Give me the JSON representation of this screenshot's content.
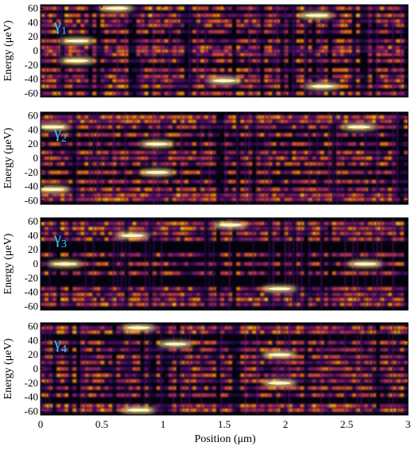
{
  "chart_data": {
    "type": "heatmap",
    "colormap": "inferno",
    "xlabel": "Position (μm)",
    "x_ticks": [
      "0",
      "0.5",
      "1",
      "1.5",
      "2",
      "2.5",
      "3"
    ],
    "xlim": [
      0,
      3
    ],
    "ylim": [
      -65,
      65
    ],
    "y_ticks": [
      "60",
      "40",
      "20",
      "0",
      "-20",
      "-40",
      "-60"
    ],
    "panels": [
      {
        "ylabel": "Energy (μeV)",
        "label": "γ",
        "label_sub": "1",
        "bright_energy_lines": [
          -60,
          -50,
          -42,
          -36,
          -27,
          -14,
          -5,
          0,
          5,
          14,
          27,
          36,
          42,
          50,
          60
        ],
        "hot_spots": [
          {
            "x": 0.3,
            "y": 14
          },
          {
            "x": 0.3,
            "y": -14
          },
          {
            "x": 0.62,
            "y": 60
          },
          {
            "x": 1.5,
            "y": -42
          },
          {
            "x": 2.25,
            "y": 50
          },
          {
            "x": 2.3,
            "y": -50
          }
        ]
      },
      {
        "ylabel": "Energy (μeV)",
        "label": "γ",
        "label_sub": "2",
        "bright_energy_lines": [
          -58,
          -52,
          -44,
          -33,
          -20,
          -8,
          0,
          8,
          20,
          33,
          44,
          52,
          58
        ],
        "hot_spots": [
          {
            "x": 0.1,
            "y": 44
          },
          {
            "x": 0.1,
            "y": -44
          },
          {
            "x": 0.95,
            "y": 20
          },
          {
            "x": 0.95,
            "y": -20
          },
          {
            "x": 2.6,
            "y": 44
          }
        ]
      },
      {
        "ylabel": "Energy (μeV)",
        "label": "γ",
        "label_sub": "3",
        "bright_energy_lines": [
          -57,
          -50,
          -43,
          -35,
          -13,
          0,
          13,
          35,
          43,
          50,
          57
        ],
        "hot_spots": [
          {
            "x": 0.2,
            "y": 0
          },
          {
            "x": 0.75,
            "y": 40
          },
          {
            "x": 1.55,
            "y": 55
          },
          {
            "x": 1.95,
            "y": -35
          },
          {
            "x": 2.65,
            "y": 0
          }
        ]
      },
      {
        "ylabel": "Energy (μeV)",
        "label": "γ",
        "label_sub": "4",
        "bright_energy_lines": [
          -58,
          -52,
          -37,
          -27,
          -17,
          -9,
          0,
          9,
          17,
          27,
          37,
          52,
          58
        ],
        "hot_spots": [
          {
            "x": 0.8,
            "y": 58
          },
          {
            "x": 0.8,
            "y": -58
          },
          {
            "x": 1.95,
            "y": 20
          },
          {
            "x": 1.95,
            "y": -20
          },
          {
            "x": 1.1,
            "y": 35
          }
        ]
      }
    ]
  }
}
